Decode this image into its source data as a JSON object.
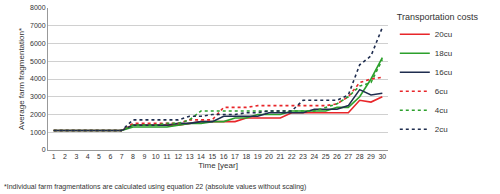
{
  "chart_data": {
    "type": "line",
    "x_label": "Time [year]",
    "y_label": "Average farm fragmentation*",
    "footnote": "*Individual farm fragmentations are calculated using equation 22 (absolute values without scaling)",
    "legend_title": "Transportation costs",
    "legend": "right",
    "grid": true,
    "x": [
      1,
      2,
      3,
      4,
      5,
      6,
      7,
      8,
      9,
      10,
      11,
      12,
      13,
      14,
      15,
      16,
      17,
      18,
      19,
      20,
      21,
      22,
      23,
      24,
      25,
      26,
      27,
      28,
      29,
      30
    ],
    "xlim": [
      0.5,
      30.5
    ],
    "xticks": [
      1,
      2,
      3,
      4,
      5,
      6,
      7,
      8,
      9,
      10,
      11,
      12,
      13,
      14,
      15,
      16,
      17,
      18,
      19,
      20,
      21,
      22,
      23,
      24,
      25,
      26,
      27,
      28,
      29,
      30
    ],
    "ylim": [
      0,
      8000
    ],
    "yticks": [
      0,
      1000,
      2000,
      3000,
      4000,
      5000,
      6000,
      7000,
      8000
    ],
    "series": [
      {
        "name": "20cu",
        "color": "#e8262a",
        "line_style": "solid",
        "values": [
          1100,
          1100,
          1100,
          1100,
          1100,
          1100,
          1100,
          1400,
          1400,
          1400,
          1400,
          1400,
          1500,
          1600,
          1600,
          1600,
          1600,
          1800,
          1800,
          1800,
          1800,
          2100,
          2100,
          2100,
          2100,
          2100,
          2100,
          2800,
          2700,
          3000
        ]
      },
      {
        "name": "18cu",
        "color": "#2ca02c",
        "line_style": "solid",
        "values": [
          1100,
          1100,
          1100,
          1100,
          1100,
          1100,
          1100,
          1300,
          1300,
          1300,
          1300,
          1400,
          1500,
          1500,
          1600,
          1600,
          1800,
          1800,
          2000,
          2000,
          2000,
          2200,
          2200,
          2200,
          2200,
          2400,
          2400,
          3000,
          4000,
          5200
        ]
      },
      {
        "name": "16cu",
        "color": "#1f2d4f",
        "line_style": "solid",
        "values": [
          1100,
          1100,
          1100,
          1100,
          1100,
          1100,
          1100,
          1400,
          1400,
          1400,
          1400,
          1500,
          1500,
          1600,
          1600,
          1900,
          1900,
          1900,
          1900,
          2100,
          2100,
          2100,
          2100,
          2300,
          2300,
          2300,
          2500,
          3400,
          3100,
          3200
        ]
      },
      {
        "name": "6cu",
        "color": "#e8262a",
        "line_style": "dot",
        "values": [
          1100,
          1100,
          1100,
          1100,
          1100,
          1100,
          1100,
          1500,
          1500,
          1500,
          1500,
          1500,
          1700,
          1700,
          1700,
          2400,
          2400,
          2400,
          2500,
          2500,
          2500,
          2500,
          2500,
          2500,
          2500,
          2600,
          3000,
          3800,
          4000,
          4100
        ]
      },
      {
        "name": "4cu",
        "color": "#2ca02c",
        "line_style": "dot",
        "values": [
          1100,
          1100,
          1100,
          1100,
          1100,
          1100,
          1100,
          1400,
          1400,
          1400,
          1500,
          1500,
          1700,
          2200,
          2200,
          2200,
          2200,
          2200,
          2200,
          2200,
          2200,
          2200,
          2200,
          2200,
          2400,
          2600,
          3000,
          3600,
          3800,
          5100
        ]
      },
      {
        "name": "2cu",
        "color": "#1f2d4f",
        "line_style": "dot",
        "values": [
          1100,
          1100,
          1100,
          1100,
          1100,
          1100,
          1100,
          1700,
          1700,
          1700,
          1700,
          1700,
          1900,
          1900,
          2000,
          2000,
          2000,
          2100,
          2100,
          2200,
          2200,
          2200,
          2800,
          2800,
          2800,
          2800,
          3100,
          4800,
          5300,
          6900
        ]
      }
    ]
  }
}
